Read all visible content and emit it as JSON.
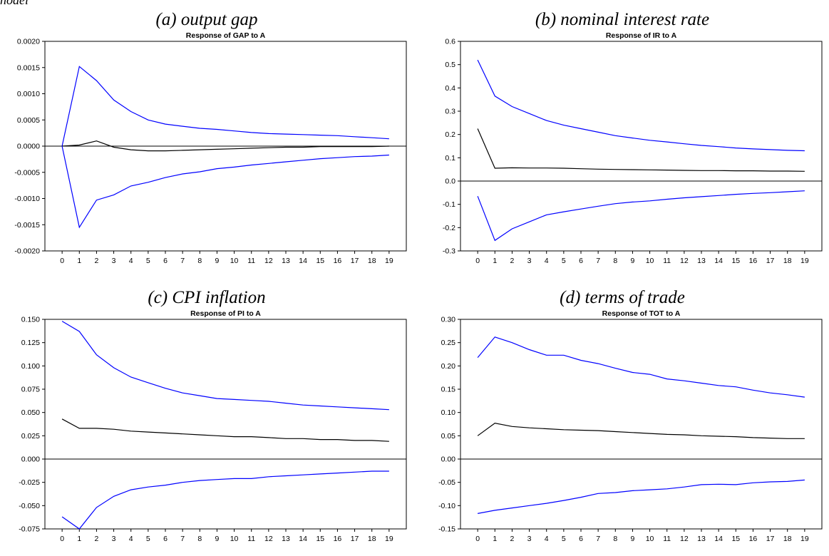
{
  "header": {
    "top_word": "nodel"
  },
  "panels": [
    {
      "caption": "(a) output gap"
    },
    {
      "caption": "(b) nominal interest rate"
    },
    {
      "caption": "(c) CPI inflation"
    },
    {
      "caption": "(d) terms of trade"
    }
  ],
  "chart_data": [
    {
      "type": "line",
      "title": "Response of GAP to A",
      "x": [
        0,
        1,
        2,
        3,
        4,
        5,
        6,
        7,
        8,
        9,
        10,
        11,
        12,
        13,
        14,
        15,
        16,
        17,
        18,
        19
      ],
      "ylim": [
        -0.002,
        0.002
      ],
      "yticks": [
        -0.002,
        -0.0015,
        -0.001,
        -0.0005,
        0,
        0.0005,
        0.001,
        0.0015,
        0.002
      ],
      "ytick_labels": [
        "-0.0020",
        "-0.0015",
        "-0.0010",
        "-0.0005",
        "0.0000",
        "0.0005",
        "0.0010",
        "0.0015",
        "0.0020"
      ],
      "grid": false,
      "series": [
        {
          "color": "#0000ff",
          "values": [
            0,
            0.00152,
            0.00125,
            0.00088,
            0.00066,
            0.0005,
            0.00042,
            0.00038,
            0.00034,
            0.00032,
            0.00029,
            0.00026,
            0.00024,
            0.00023,
            0.00022,
            0.00021,
            0.0002,
            0.00018,
            0.00016,
            0.00014
          ]
        },
        {
          "color": "#000000",
          "values": [
            0,
            2e-05,
            0.0001,
            -2e-05,
            -7e-05,
            -9e-05,
            -9e-05,
            -8e-05,
            -7e-05,
            -6e-05,
            -5e-05,
            -4e-05,
            -3e-05,
            -2e-05,
            -2e-05,
            -1e-05,
            -1e-05,
            -1e-05,
            -1e-05,
            0
          ]
        },
        {
          "color": "#0000ff",
          "values": [
            0,
            -0.00155,
            -0.00103,
            -0.00093,
            -0.00076,
            -0.00069,
            -0.0006,
            -0.00053,
            -0.00049,
            -0.00043,
            -0.0004,
            -0.00036,
            -0.00033,
            -0.0003,
            -0.00027,
            -0.00024,
            -0.00022,
            -0.0002,
            -0.00019,
            -0.00017
          ]
        }
      ]
    },
    {
      "type": "line",
      "title": "Response of IR to A",
      "x": [
        0,
        1,
        2,
        3,
        4,
        5,
        6,
        7,
        8,
        9,
        10,
        11,
        12,
        13,
        14,
        15,
        16,
        17,
        18,
        19
      ],
      "ylim": [
        -0.3,
        0.6
      ],
      "yticks": [
        -0.3,
        -0.2,
        -0.1,
        0,
        0.1,
        0.2,
        0.3,
        0.4,
        0.5,
        0.6
      ],
      "ytick_labels": [
        "-0.3",
        "-0.2",
        "-0.1",
        "0.0",
        "0.1",
        "0.2",
        "0.3",
        "0.4",
        "0.5",
        "0.6"
      ],
      "grid": false,
      "series": [
        {
          "color": "#0000ff",
          "values": [
            0.52,
            0.365,
            0.32,
            0.29,
            0.26,
            0.24,
            0.225,
            0.21,
            0.195,
            0.185,
            0.175,
            0.168,
            0.16,
            0.153,
            0.148,
            0.142,
            0.138,
            0.135,
            0.132,
            0.13
          ]
        },
        {
          "color": "#000000",
          "values": [
            0.225,
            0.055,
            0.057,
            0.056,
            0.056,
            0.055,
            0.053,
            0.051,
            0.05,
            0.049,
            0.048,
            0.047,
            0.046,
            0.045,
            0.045,
            0.044,
            0.044,
            0.043,
            0.043,
            0.042
          ]
        },
        {
          "color": "#0000ff",
          "values": [
            -0.065,
            -0.255,
            -0.205,
            -0.175,
            -0.145,
            -0.132,
            -0.12,
            -0.108,
            -0.097,
            -0.09,
            -0.085,
            -0.078,
            -0.072,
            -0.067,
            -0.062,
            -0.057,
            -0.053,
            -0.05,
            -0.046,
            -0.042
          ]
        }
      ]
    },
    {
      "type": "line",
      "title": "Response of PI to A",
      "x": [
        0,
        1,
        2,
        3,
        4,
        5,
        6,
        7,
        8,
        9,
        10,
        11,
        12,
        13,
        14,
        15,
        16,
        17,
        18,
        19
      ],
      "ylim": [
        -0.075,
        0.15
      ],
      "yticks": [
        -0.075,
        -0.05,
        -0.025,
        0,
        0.025,
        0.05,
        0.075,
        0.1,
        0.125,
        0.15
      ],
      "ytick_labels": [
        "-0.075",
        "-0.050",
        "-0.025",
        "0.000",
        "0.025",
        "0.050",
        "0.075",
        "0.100",
        "0.125",
        "0.150"
      ],
      "grid": false,
      "series": [
        {
          "color": "#0000ff",
          "values": [
            0.148,
            0.137,
            0.112,
            0.098,
            0.088,
            0.082,
            0.076,
            0.071,
            0.068,
            0.065,
            0.064,
            0.063,
            0.062,
            0.06,
            0.058,
            0.057,
            0.056,
            0.055,
            0.054,
            0.053
          ]
        },
        {
          "color": "#000000",
          "values": [
            0.043,
            0.033,
            0.033,
            0.032,
            0.03,
            0.029,
            0.028,
            0.027,
            0.026,
            0.025,
            0.024,
            0.024,
            0.023,
            0.022,
            0.022,
            0.021,
            0.021,
            0.02,
            0.02,
            0.019
          ]
        },
        {
          "color": "#0000ff",
          "values": [
            -0.062,
            -0.075,
            -0.052,
            -0.04,
            -0.033,
            -0.03,
            -0.028,
            -0.025,
            -0.023,
            -0.022,
            -0.021,
            -0.021,
            -0.019,
            -0.018,
            -0.017,
            -0.016,
            -0.015,
            -0.014,
            -0.013,
            -0.013
          ]
        }
      ]
    },
    {
      "type": "line",
      "title": "Response of TOT to A",
      "x": [
        0,
        1,
        2,
        3,
        4,
        5,
        6,
        7,
        8,
        9,
        10,
        11,
        12,
        13,
        14,
        15,
        16,
        17,
        18,
        19
      ],
      "ylim": [
        -0.15,
        0.3
      ],
      "yticks": [
        -0.15,
        -0.1,
        -0.05,
        0,
        0.05,
        0.1,
        0.15,
        0.2,
        0.25,
        0.3
      ],
      "ytick_labels": [
        "-0.15",
        "-0.10",
        "-0.05",
        "0.00",
        "0.05",
        "0.10",
        "0.15",
        "0.20",
        "0.25",
        "0.30"
      ],
      "grid": false,
      "series": [
        {
          "color": "#0000ff",
          "values": [
            0.218,
            0.262,
            0.25,
            0.235,
            0.223,
            0.223,
            0.212,
            0.205,
            0.195,
            0.186,
            0.182,
            0.172,
            0.168,
            0.163,
            0.158,
            0.155,
            0.148,
            0.142,
            0.138,
            0.133
          ]
        },
        {
          "color": "#000000",
          "values": [
            0.05,
            0.077,
            0.07,
            0.067,
            0.065,
            0.063,
            0.062,
            0.061,
            0.059,
            0.057,
            0.055,
            0.053,
            0.052,
            0.05,
            0.049,
            0.048,
            0.046,
            0.045,
            0.044,
            0.044
          ]
        },
        {
          "color": "#0000ff",
          "values": [
            -0.117,
            -0.11,
            -0.105,
            -0.1,
            -0.095,
            -0.089,
            -0.082,
            -0.074,
            -0.072,
            -0.068,
            -0.066,
            -0.064,
            -0.06,
            -0.055,
            -0.054,
            -0.055,
            -0.051,
            -0.049,
            -0.048,
            -0.045
          ]
        }
      ]
    }
  ]
}
